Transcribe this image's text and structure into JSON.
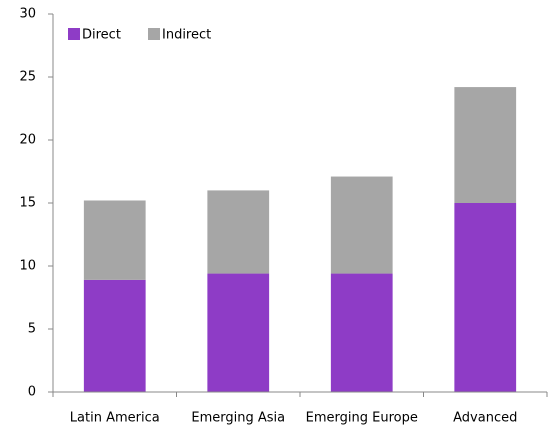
{
  "chart_data": {
    "type": "stacked-bar",
    "categories": [
      "Latin America",
      "Emerging Asia",
      "Emerging Europe",
      "Advanced"
    ],
    "series": [
      {
        "name": "Direct",
        "color": "#8e3cc6",
        "values": [
          8.9,
          9.4,
          9.4,
          15.0
        ]
      },
      {
        "name": "Indirect",
        "color": "#a6a6a6",
        "values": [
          6.3,
          6.6,
          7.7,
          9.2
        ]
      }
    ],
    "ylim": [
      0,
      30
    ],
    "yticks": [
      0,
      5,
      10,
      15,
      20,
      25,
      30
    ],
    "grid": false,
    "legend": "top-left"
  }
}
